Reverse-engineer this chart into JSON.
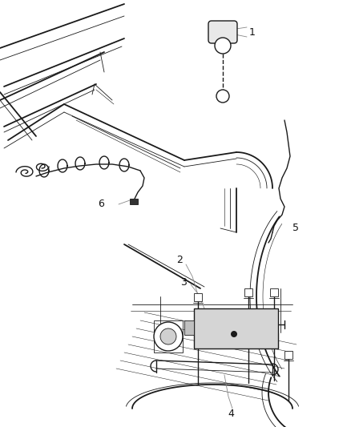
{
  "bg_color": "#ffffff",
  "line_color": "#1a1a1a",
  "fig_width": 4.38,
  "fig_height": 5.33,
  "dpi": 100,
  "lw": 1.0,
  "lw_thin": 0.6,
  "lw_thick": 1.3
}
